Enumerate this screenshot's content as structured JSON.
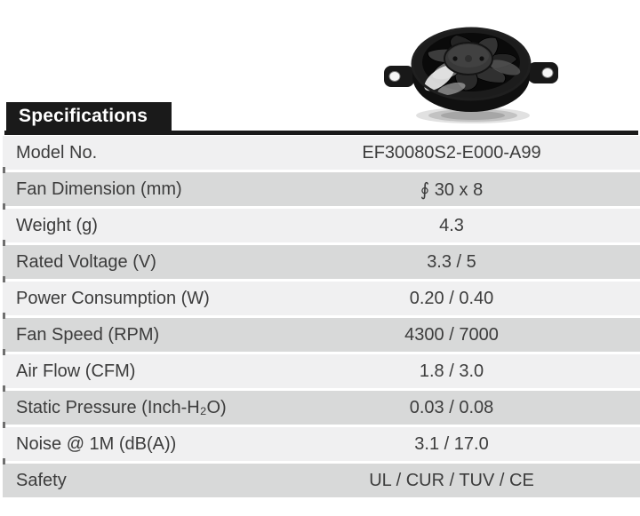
{
  "header": {
    "title": "Specifications"
  },
  "product_image": {
    "name": "axial-fan-photo",
    "description": "black round 30x8mm axial fan, two mounting ears"
  },
  "table": {
    "rows": [
      {
        "label": "Model No.",
        "value": "EF30080S2-E000-A99"
      },
      {
        "label": "Fan Dimension (mm)",
        "value": "∮ 30 x 8"
      },
      {
        "label": "Weight (g)",
        "value": "4.3"
      },
      {
        "label": "Rated Voltage (V)",
        "value": "3.3 / 5"
      },
      {
        "label": "Power Consumption (W)",
        "value": "0.20 / 0.40"
      },
      {
        "label": "Fan Speed (RPM)",
        "value": "4300 / 7000"
      },
      {
        "label": "Air Flow (CFM)",
        "value": "1.8 / 3.0"
      },
      {
        "label": "Static Pressure (Inch-H₂O)",
        "value": "0.03 / 0.08"
      },
      {
        "label": "Noise @ 1M (dB(A))",
        "value": "3.1 / 17.0"
      },
      {
        "label": "Safety",
        "value": "UL / CUR / TUV / CE"
      }
    ]
  },
  "colors": {
    "header_bg": "#1a1a1a",
    "header_text": "#ffffff",
    "row_light": "#f0f0f1",
    "row_dark": "#d8d9d9",
    "text": "#3c3c3c"
  }
}
